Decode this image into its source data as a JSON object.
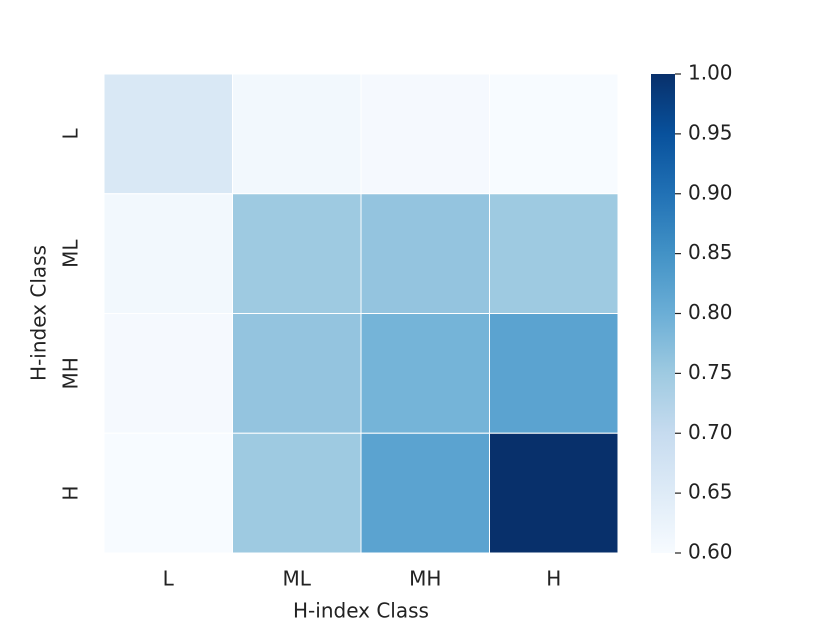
{
  "chart_data": {
    "type": "heatmap",
    "xlabel": "H-index Class",
    "ylabel": "H-index Class",
    "x_categories": [
      "L",
      "ML",
      "MH",
      "H"
    ],
    "y_categories": [
      "L",
      "ML",
      "MH",
      "H"
    ],
    "values": [
      [
        0.66,
        0.61,
        0.605,
        0.6
      ],
      [
        0.61,
        0.75,
        0.76,
        0.75
      ],
      [
        0.605,
        0.76,
        0.79,
        0.82
      ],
      [
        0.6,
        0.75,
        0.82,
        1.0
      ]
    ],
    "colormap": "Blues",
    "clim": [
      0.6,
      1.0
    ],
    "cticks": [
      {
        "value": 0.6,
        "label": "0.60"
      },
      {
        "value": 0.65,
        "label": "0.65"
      },
      {
        "value": 0.7,
        "label": "0.70"
      },
      {
        "value": 0.75,
        "label": "0.75"
      },
      {
        "value": 0.8,
        "label": "0.80"
      },
      {
        "value": 0.85,
        "label": "0.85"
      },
      {
        "value": 0.9,
        "label": "0.90"
      },
      {
        "value": 0.95,
        "label": "0.95"
      },
      {
        "value": 1.0,
        "label": "1.00"
      }
    ]
  }
}
